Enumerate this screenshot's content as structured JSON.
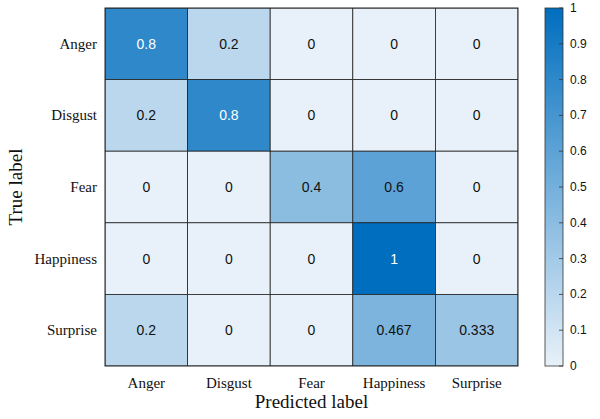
{
  "chart_data": {
    "type": "heatmap",
    "x_label": "Predicted label",
    "y_label": "True label",
    "x_categories": [
      "Anger",
      "Disgust",
      "Fear",
      "Happiness",
      "Surprise"
    ],
    "y_categories": [
      "Anger",
      "Disgust",
      "Fear",
      "Happiness",
      "Surprise"
    ],
    "values": [
      [
        0.8,
        0.2,
        0,
        0,
        0
      ],
      [
        0.2,
        0.8,
        0,
        0,
        0
      ],
      [
        0,
        0,
        0.4,
        0.6,
        0
      ],
      [
        0,
        0,
        0,
        1,
        0
      ],
      [
        0.2,
        0,
        0,
        0.467,
        0.333
      ]
    ],
    "color_range": [
      0,
      1
    ],
    "color_ticks": [
      0,
      0.1,
      0.2,
      0.3,
      0.4,
      0.5,
      0.6,
      0.7,
      0.8,
      0.9,
      1
    ],
    "data_labels": true
  }
}
